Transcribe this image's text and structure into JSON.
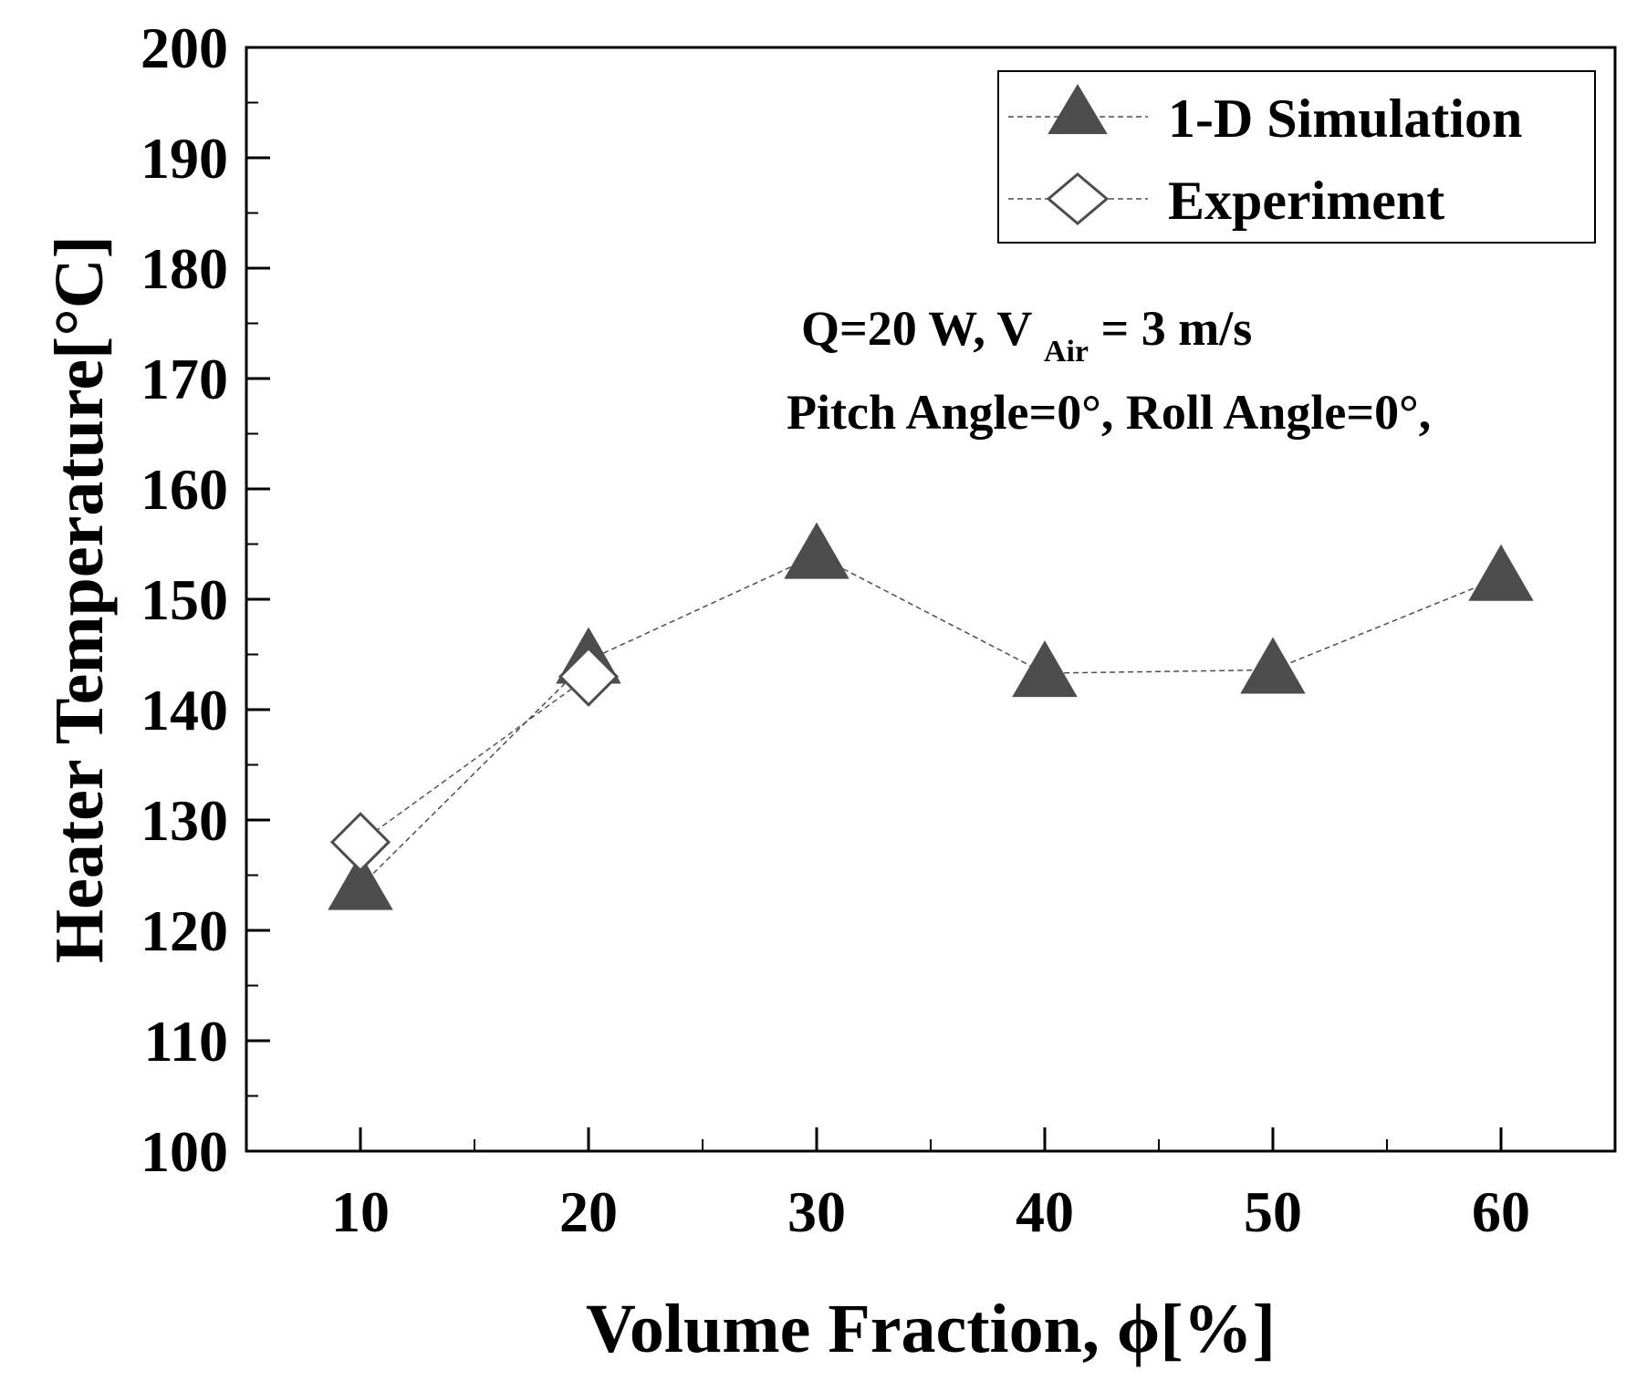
{
  "chart_data": {
    "type": "scatter",
    "xlabel": "Volume Fraction, ϕ[%]",
    "ylabel": "Heater Temperature[°C]",
    "xlim": [
      5,
      65
    ],
    "ylim": [
      100,
      200
    ],
    "x_ticks": [
      10,
      20,
      30,
      40,
      50,
      60
    ],
    "y_ticks": [
      100,
      110,
      120,
      130,
      140,
      150,
      160,
      170,
      180,
      190,
      200
    ],
    "x_tick_labels": [
      "10",
      "20",
      "30",
      "40",
      "50",
      "60"
    ],
    "y_tick_labels": [
      "100",
      "110",
      "120",
      "130",
      "140",
      "150",
      "160",
      "170",
      "180",
      "190",
      "200"
    ],
    "grid": false,
    "legend_position": "top-right",
    "series": [
      {
        "name": "1-D Simulation",
        "marker": "filled-triangle",
        "color": "#4d4d4d",
        "line_style": "dashed",
        "x": [
          10,
          20,
          30,
          40,
          50,
          60
        ],
        "y": [
          124,
          144.5,
          154,
          143.3,
          143.6,
          152
        ]
      },
      {
        "name": "Experiment",
        "marker": "open-diamond",
        "color": "#4d4d4d",
        "line_style": "dashed",
        "x": [
          10,
          20
        ],
        "y": [
          128,
          143
        ]
      }
    ],
    "annotations": [
      {
        "parts": [
          "Q=20 W,  V ",
          "Air",
          " = 3 m/s"
        ]
      },
      {
        "text": "Pitch Angle=0°, Roll Angle=0°,"
      }
    ]
  }
}
